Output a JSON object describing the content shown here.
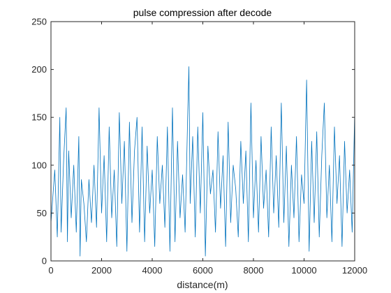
{
  "chart_data": {
    "type": "line",
    "title": "pulse compression after decode",
    "xlabel": "distance(m)",
    "ylabel": "",
    "xlim": [
      0,
      12000
    ],
    "ylim": [
      0,
      250
    ],
    "xticks": [
      0,
      2000,
      4000,
      6000,
      8000,
      10000,
      12000
    ],
    "xtick_labels": [
      "0",
      "2000",
      "4000",
      "6000",
      "8000",
      "10000",
      "12000"
    ],
    "yticks": [
      0,
      50,
      100,
      150,
      200,
      250
    ],
    "ytick_labels": [
      "0",
      "50",
      "100",
      "150",
      "200",
      "250"
    ],
    "grid": false,
    "legend": "none",
    "series": [
      {
        "color": "#0072BD",
        "x": [
          0,
          150,
          250,
          350,
          400,
          500,
          600,
          650,
          700,
          800,
          900,
          1000,
          1100,
          1150,
          1200,
          1300,
          1400,
          1500,
          1600,
          1700,
          1800,
          1900,
          2000,
          2100,
          2200,
          2300,
          2400,
          2500,
          2600,
          2700,
          2800,
          2900,
          3000,
          3100,
          3200,
          3300,
          3400,
          3500,
          3600,
          3700,
          3800,
          3900,
          4000,
          4100,
          4200,
          4300,
          4400,
          4500,
          4600,
          4700,
          4800,
          4900,
          5000,
          5100,
          5200,
          5300,
          5400,
          5450,
          5500,
          5600,
          5700,
          5800,
          5900,
          6000,
          6100,
          6200,
          6300,
          6400,
          6500,
          6600,
          6700,
          6800,
          6900,
          7000,
          7100,
          7200,
          7300,
          7400,
          7500,
          7600,
          7700,
          7800,
          7900,
          8000,
          8100,
          8200,
          8300,
          8400,
          8500,
          8600,
          8700,
          8800,
          8900,
          9000,
          9100,
          9200,
          9300,
          9400,
          9500,
          9600,
          9700,
          9800,
          9900,
          10000,
          10100,
          10200,
          10300,
          10400,
          10500,
          10600,
          10700,
          10800,
          10900,
          11000,
          11100,
          11200,
          11300,
          11400,
          11500,
          11600,
          11700,
          11800,
          11900,
          12000
        ],
        "y": [
          40,
          95,
          25,
          150,
          30,
          105,
          160,
          20,
          115,
          45,
          100,
          30,
          130,
          5,
          85,
          60,
          20,
          85,
          40,
          100,
          35,
          160,
          50,
          110,
          20,
          140,
          45,
          95,
          15,
          155,
          60,
          125,
          10,
          145,
          40,
          115,
          150,
          30,
          140,
          20,
          120,
          50,
          95,
          15,
          130,
          60,
          100,
          35,
          140,
          10,
          160,
          20,
          125,
          45,
          90,
          30,
          150,
          203,
          60,
          130,
          25,
          140,
          50,
          155,
          5,
          120,
          70,
          95,
          30,
          135,
          55,
          110,
          15,
          145,
          40,
          100,
          75,
          25,
          125,
          60,
          115,
          20,
          165,
          45,
          105,
          30,
          130,
          55,
          95,
          25,
          140,
          50,
          110,
          35,
          165,
          40,
          120,
          15,
          100,
          45,
          130,
          20,
          90,
          60,
          189,
          10,
          125,
          40,
          135,
          25,
          110,
          165,
          45,
          100,
          20,
          140,
          60,
          110,
          15,
          125,
          50,
          95,
          30,
          155
        ]
      }
    ]
  }
}
